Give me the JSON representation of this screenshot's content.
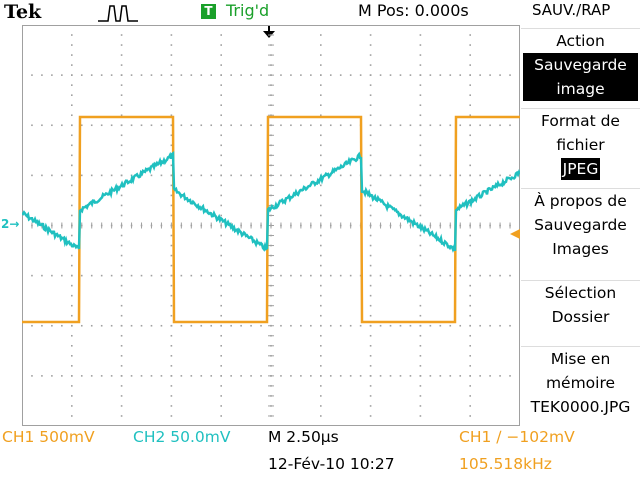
{
  "header": {
    "brand": "Tek",
    "trigger_badge": "T",
    "trigger_status": "Trig'd",
    "position": "M Pos: 0.000s",
    "menu_title": "SAUV./RAP"
  },
  "menu": [
    {
      "lines": [
        "Action"
      ],
      "value": [
        "Sauvegarde",
        "image"
      ]
    },
    {
      "lines": [
        "Format de",
        "fichier"
      ],
      "value": [
        "JPEG"
      ]
    },
    {
      "lines": [
        "À propos de",
        "Sauvegarde",
        "Images"
      ]
    },
    {
      "lines": [
        "Sélection",
        "Dossier"
      ]
    },
    {
      "lines": [
        "Mise en",
        "mémoire",
        "TEK0000.JPG"
      ]
    }
  ],
  "footer": {
    "ch1": "CH1  500mV",
    "ch2": "CH2  50.0mV",
    "timebase": "M 2.50µs",
    "datetime": "12-Fév-10 10:27",
    "trigger": "CH1 ∕ −102mV",
    "frequency": "105.518kHz"
  },
  "markers": {
    "ch2": "2→"
  },
  "colors": {
    "ch1": "#f0a020",
    "ch2": "#20c0c0",
    "trigger": "#1aa02a",
    "grid": "#a0a0a0"
  }
}
